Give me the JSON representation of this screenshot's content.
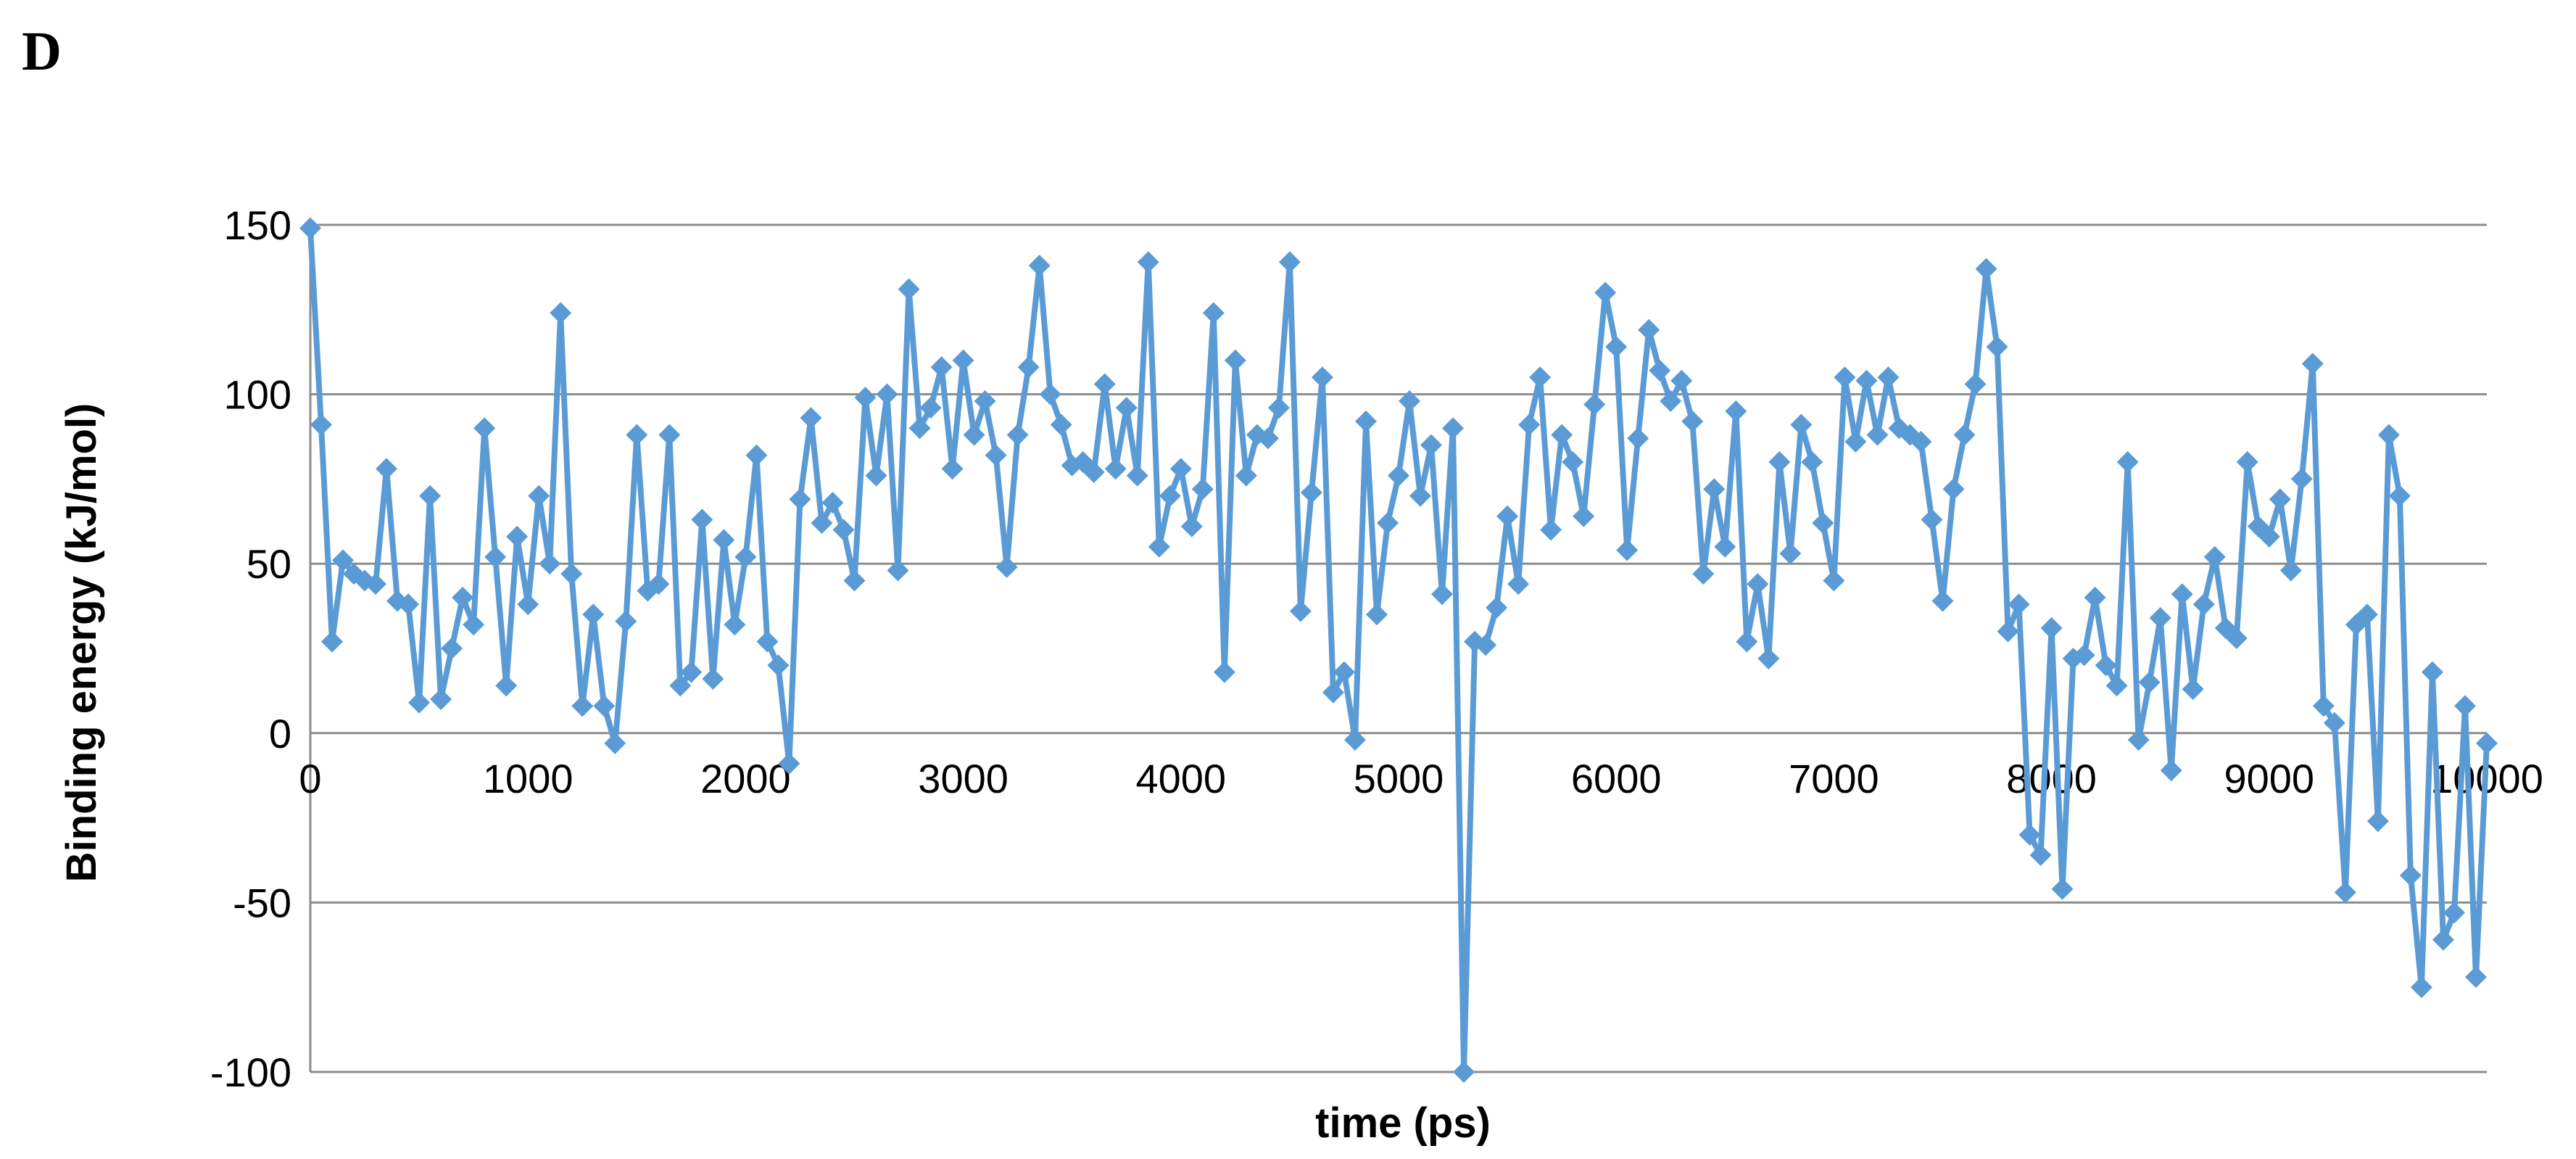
{
  "panel_label": "D",
  "chart_data": {
    "type": "line",
    "xlabel": "time (ps)",
    "ylabel": "Binding energy (kJ/mol)",
    "xlim": [
      0,
      10000
    ],
    "ylim": [
      -100,
      150
    ],
    "x_ticks": [
      "0",
      "1000",
      "2000",
      "3000",
      "4000",
      "5000",
      "6000",
      "7000",
      "8000",
      "9000",
      "10000"
    ],
    "y_ticks": [
      "150",
      "100",
      "50",
      "0",
      "-50",
      "-100"
    ],
    "grid": "horizontal",
    "legend": "none",
    "marker": "diamond",
    "color": "#5b9bd5",
    "x_step": 50,
    "series": [
      {
        "values": [
          149,
          91,
          27,
          51,
          47,
          45,
          44,
          78,
          39,
          38,
          9,
          70,
          10,
          25,
          40,
          32,
          90,
          52,
          14,
          58,
          38,
          70,
          50,
          124,
          47,
          8,
          35,
          8,
          -3,
          33,
          88,
          42,
          44,
          88,
          14,
          18,
          63,
          16,
          57,
          32,
          52,
          82,
          27,
          20,
          -9,
          69,
          93,
          62,
          68,
          60,
          45,
          99,
          76,
          100,
          48,
          131,
          90,
          96,
          108,
          78,
          110,
          88,
          98,
          82,
          49,
          88,
          108,
          138,
          100,
          91,
          79,
          80,
          77,
          103,
          78,
          96,
          76,
          139,
          55,
          70,
          78,
          61,
          72,
          124,
          18,
          110,
          76,
          88,
          87,
          96,
          139,
          36,
          71,
          105,
          12,
          18,
          -2,
          92,
          35,
          62,
          76,
          98,
          70,
          85,
          41,
          90,
          -100,
          27,
          26,
          37,
          64,
          44,
          91,
          105,
          60,
          88,
          80,
          64,
          97,
          130,
          114,
          54,
          87,
          119,
          107,
          98,
          104,
          92,
          47,
          72,
          55,
          95,
          27,
          44,
          22,
          80,
          53,
          91,
          80,
          62,
          45,
          105,
          86,
          104,
          88,
          105,
          90,
          88,
          86,
          63,
          39,
          72,
          88,
          103,
          137,
          114,
          30,
          38,
          -30,
          -36,
          31,
          -46,
          22,
          23,
          40,
          20,
          14,
          80,
          -2,
          15,
          34,
          -11,
          41,
          13,
          38,
          52,
          31,
          28,
          80,
          61,
          58,
          69,
          48,
          75,
          109,
          8,
          3,
          -47,
          32,
          35,
          -26,
          88,
          70,
          -42,
          -75,
          18,
          -61,
          -53,
          8,
          -72,
          -3
        ]
      }
    ]
  }
}
